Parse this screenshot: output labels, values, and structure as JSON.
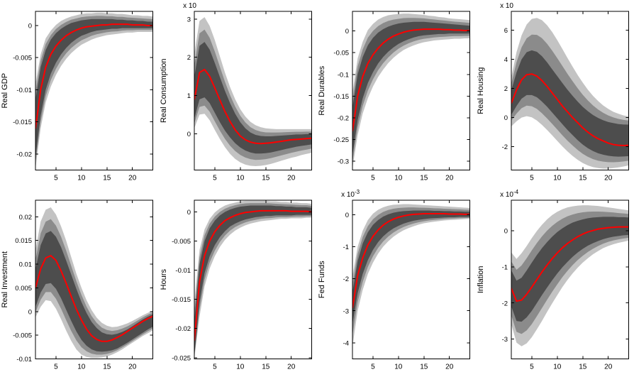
{
  "figure": {
    "background": "#ffffff",
    "colors": {
      "median_line": "#ff0000",
      "band_outer": "#c3c3c3",
      "band_mid": "#8b8b8b",
      "band_inner": "#4d4d4d",
      "axis": "#000000"
    },
    "x_range": [
      1,
      24
    ],
    "x_ticks": [
      5,
      10,
      15,
      20
    ],
    "x_tick_labels": [
      "5",
      "10",
      "15",
      "20"
    ]
  },
  "chart_data": [
    {
      "type": "line",
      "id": "real-gdp",
      "ylabel": "Real GDP",
      "exponent": null,
      "ylim": [
        -0.0225,
        0.0022
      ],
      "ytick_values": [
        0,
        -0.005,
        -0.01,
        -0.015,
        -0.02
      ],
      "ytick_labels": [
        "0",
        "-0.005",
        "-0.01",
        "-0.015",
        "-0.02"
      ],
      "median": [
        -0.016,
        -0.01,
        -0.0065,
        -0.0045,
        -0.0032,
        -0.0023,
        -0.0016,
        -0.0011,
        -0.0007,
        -0.0004,
        -0.0002,
        -0.0001,
        0,
        0.0001,
        0.0001,
        0.0002,
        0.0002,
        0.0002,
        0.0002,
        0.0001,
        0.0001,
        0.0001,
        0,
        0
      ],
      "inner_lo": [
        -0.0205,
        -0.014,
        -0.01,
        -0.0075,
        -0.0058,
        -0.0045,
        -0.0035,
        -0.0027,
        -0.0021,
        -0.0016,
        -0.0013,
        -0.001,
        -0.0008,
        -0.0007,
        -0.0006,
        -0.0005,
        -0.0005,
        -0.0004,
        -0.0004,
        -0.0004,
        -0.0004,
        -0.0004,
        -0.0004,
        -0.0004
      ],
      "inner_hi": [
        -0.0115,
        -0.0065,
        -0.0038,
        -0.0022,
        -0.0012,
        -0.0005,
        0,
        0.0004,
        0.0006,
        0.0008,
        0.0009,
        0.001,
        0.001,
        0.001,
        0.001,
        0.001,
        0.0009,
        0.0009,
        0.0008,
        0.0008,
        0.0007,
        0.0007,
        0.0006,
        0.0006
      ],
      "outer_lo": [
        -0.0222,
        -0.016,
        -0.012,
        -0.0095,
        -0.0077,
        -0.0063,
        -0.0052,
        -0.0043,
        -0.0036,
        -0.003,
        -0.0026,
        -0.0022,
        -0.0019,
        -0.0017,
        -0.0015,
        -0.0014,
        -0.0013,
        -0.0012,
        -0.0011,
        -0.0011,
        -0.001,
        -0.001,
        -0.001,
        -0.001
      ],
      "outer_hi": [
        -0.009,
        -0.0045,
        -0.002,
        -0.0008,
        0.0001,
        0.0007,
        0.0011,
        0.0014,
        0.0016,
        0.0018,
        0.0019,
        0.0019,
        0.002,
        0.002,
        0.0019,
        0.0019,
        0.0018,
        0.0018,
        0.0017,
        0.0016,
        0.0016,
        0.0015,
        0.0015,
        0.0014
      ]
    },
    {
      "type": "line",
      "id": "real-consumption",
      "ylabel": "Real Consumption",
      "exponent": {
        "base": "x 10",
        "exp": ""
      },
      "ylim": [
        -0.95,
        3.2
      ],
      "ytick_values": [
        3,
        2,
        1,
        0
      ],
      "ytick_labels": [
        "3",
        "2",
        "1",
        "0"
      ],
      "median": [
        0.9,
        1.6,
        1.68,
        1.5,
        1.2,
        0.88,
        0.58,
        0.32,
        0.1,
        -0.06,
        -0.16,
        -0.22,
        -0.25,
        -0.26,
        -0.25,
        -0.24,
        -0.22,
        -0.2,
        -0.18,
        -0.16,
        -0.15,
        -0.14,
        -0.13,
        -0.12
      ],
      "inner_lo": [
        0.4,
        0.9,
        0.95,
        0.8,
        0.55,
        0.3,
        0.08,
        -0.1,
        -0.25,
        -0.36,
        -0.44,
        -0.49,
        -0.52,
        -0.52,
        -0.51,
        -0.49,
        -0.46,
        -0.43,
        -0.4,
        -0.37,
        -0.34,
        -0.32,
        -0.3,
        -0.28
      ],
      "inner_hi": [
        1.5,
        2.3,
        2.4,
        2.2,
        1.85,
        1.48,
        1.12,
        0.8,
        0.52,
        0.3,
        0.14,
        0.03,
        -0.03,
        -0.06,
        -0.07,
        -0.07,
        -0.06,
        -0.05,
        -0.04,
        -0.03,
        -0.02,
        -0.02,
        -0.01,
        -0.01
      ],
      "outer_lo": [
        0.15,
        0.5,
        0.52,
        0.35,
        0.1,
        -0.14,
        -0.35,
        -0.53,
        -0.66,
        -0.75,
        -0.81,
        -0.84,
        -0.85,
        -0.84,
        -0.82,
        -0.79,
        -0.75,
        -0.71,
        -0.67,
        -0.63,
        -0.6,
        -0.56,
        -0.53,
        -0.5
      ],
      "outer_hi": [
        2.1,
        2.95,
        3.05,
        2.82,
        2.45,
        2.02,
        1.6,
        1.22,
        0.9,
        0.64,
        0.45,
        0.31,
        0.22,
        0.17,
        0.14,
        0.13,
        0.12,
        0.12,
        0.12,
        0.12,
        0.12,
        0.12,
        0.12,
        0.12
      ]
    },
    {
      "type": "line",
      "id": "real-durables",
      "ylabel": "Real Durables",
      "exponent": null,
      "ylim": [
        -0.32,
        0.045
      ],
      "ytick_values": [
        0,
        -0.05,
        -0.1,
        -0.15,
        -0.2,
        -0.25,
        -0.3
      ],
      "ytick_labels": [
        "0",
        "-0.05",
        "-0.1",
        "-0.15",
        "-0.2",
        "-0.25",
        "-0.3"
      ],
      "median": [
        -0.23,
        -0.15,
        -0.105,
        -0.075,
        -0.055,
        -0.04,
        -0.028,
        -0.019,
        -0.012,
        -0.007,
        -0.003,
        0,
        0.002,
        0.003,
        0.004,
        0.004,
        0.004,
        0.004,
        0.003,
        0.003,
        0.002,
        0.002,
        0.001,
        0.001
      ],
      "inner_lo": [
        -0.285,
        -0.205,
        -0.155,
        -0.12,
        -0.095,
        -0.075,
        -0.06,
        -0.048,
        -0.038,
        -0.03,
        -0.024,
        -0.019,
        -0.015,
        -0.012,
        -0.01,
        -0.009,
        -0.008,
        -0.007,
        -0.007,
        -0.006,
        -0.006,
        -0.006,
        -0.006,
        -0.006
      ],
      "inner_hi": [
        -0.175,
        -0.1,
        -0.06,
        -0.033,
        -0.016,
        -0.004,
        0.004,
        0.01,
        0.014,
        0.017,
        0.019,
        0.02,
        0.021,
        0.021,
        0.021,
        0.02,
        0.019,
        0.018,
        0.017,
        0.016,
        0.015,
        0.014,
        0.013,
        0.012
      ],
      "outer_lo": [
        -0.315,
        -0.24,
        -0.19,
        -0.155,
        -0.128,
        -0.106,
        -0.089,
        -0.074,
        -0.062,
        -0.052,
        -0.044,
        -0.038,
        -0.033,
        -0.029,
        -0.026,
        -0.024,
        -0.022,
        -0.021,
        -0.02,
        -0.019,
        -0.018,
        -0.018,
        -0.017,
        -0.017
      ],
      "outer_hi": [
        -0.14,
        -0.063,
        -0.025,
        0.002,
        0.016,
        0.026,
        0.032,
        0.036,
        0.038,
        0.039,
        0.04,
        0.04,
        0.039,
        0.038,
        0.037,
        0.035,
        0.034,
        0.032,
        0.031,
        0.029,
        0.028,
        0.027,
        0.026,
        0.025
      ]
    },
    {
      "type": "line",
      "id": "real-housing",
      "ylabel": "Real Housing",
      "exponent": {
        "base": "x 10",
        "exp": ""
      },
      "ylim": [
        -3.6,
        7.3
      ],
      "ytick_values": [
        6,
        4,
        2,
        0,
        -2
      ],
      "ytick_labels": [
        "6",
        "4",
        "2",
        "0",
        "-2"
      ],
      "median": [
        1,
        1.9,
        2.6,
        2.95,
        3,
        2.85,
        2.55,
        2.15,
        1.7,
        1.25,
        0.8,
        0.4,
        0,
        -0.35,
        -0.7,
        -1,
        -1.25,
        -1.45,
        -1.6,
        -1.75,
        -1.85,
        -1.9,
        -1.92,
        -1.9
      ],
      "inner_lo": [
        0.2,
        0.8,
        1.3,
        1.55,
        1.55,
        1.4,
        1.1,
        0.75,
        0.35,
        -0.05,
        -0.45,
        -0.85,
        -1.2,
        -1.55,
        -1.85,
        -2.1,
        -2.3,
        -2.45,
        -2.55,
        -2.62,
        -2.66,
        -2.68,
        -2.67,
        -2.64
      ],
      "inner_hi": [
        1.9,
        3.1,
        4,
        4.5,
        4.62,
        4.52,
        4.22,
        3.8,
        3.32,
        2.85,
        2.38,
        1.92,
        1.5,
        1.1,
        0.74,
        0.44,
        0.18,
        -0.02,
        -0.18,
        -0.3,
        -0.38,
        -0.44,
        -0.47,
        -0.48
      ],
      "outer_lo": [
        -0.6,
        -0.25,
        0,
        0.1,
        0.02,
        -0.2,
        -0.5,
        -0.85,
        -1.22,
        -1.6,
        -1.97,
        -2.32,
        -2.63,
        -2.9,
        -3.12,
        -3.28,
        -3.4,
        -3.47,
        -3.5,
        -3.5,
        -3.47,
        -3.42,
        -3.36,
        -3.28
      ],
      "outer_hi": [
        2.8,
        4.5,
        5.65,
        6.4,
        6.78,
        6.85,
        6.7,
        6.35,
        5.88,
        5.32,
        4.72,
        4.1,
        3.5,
        2.92,
        2.4,
        1.92,
        1.5,
        1.14,
        0.84,
        0.6,
        0.4,
        0.26,
        0.15,
        0.08
      ]
    },
    {
      "type": "line",
      "id": "real-investment",
      "ylabel": "Real Investment",
      "exponent": null,
      "ylim": [
        -0.01,
        0.0235
      ],
      "ytick_values": [
        0.02,
        0.015,
        0.01,
        0.005,
        0,
        -0.005,
        -0.01
      ],
      "ytick_labels": [
        "0.02",
        "0.015",
        "0.01",
        "0.005",
        "0",
        "-0.005",
        "-0.01"
      ],
      "median": [
        0.005,
        0.009,
        0.0113,
        0.0118,
        0.0108,
        0.0086,
        0.006,
        0.0032,
        0.0005,
        -0.0018,
        -0.0037,
        -0.0051,
        -0.0059,
        -0.0063,
        -0.0063,
        -0.006,
        -0.0055,
        -0.0049,
        -0.0042,
        -0.0035,
        -0.0028,
        -0.0021,
        -0.0015,
        -0.001
      ],
      "inner_lo": [
        0.001,
        0.004,
        0.0058,
        0.006,
        0.0048,
        0.0028,
        0.0004,
        -0.002,
        -0.0042,
        -0.006,
        -0.0072,
        -0.008,
        -0.0084,
        -0.0085,
        -0.0084,
        -0.0082,
        -0.0078,
        -0.0072,
        -0.0066,
        -0.0059,
        -0.0052,
        -0.0045,
        -0.0038,
        -0.0032
      ],
      "inner_hi": [
        0.009,
        0.014,
        0.0165,
        0.017,
        0.0158,
        0.0136,
        0.0108,
        0.0078,
        0.0048,
        0.002,
        -0.0003,
        -0.0022,
        -0.0035,
        -0.0044,
        -0.0048,
        -0.0049,
        -0.0047,
        -0.0043,
        -0.0038,
        -0.0031,
        -0.0024,
        -0.0017,
        -0.0011,
        -0.0006
      ],
      "outer_lo": [
        -0.0012,
        0.001,
        0.0024,
        0.0022,
        0.0006,
        -0.0016,
        -0.004,
        -0.0062,
        -0.008,
        -0.0091,
        -0.0096,
        -0.0098,
        -0.0098,
        -0.0097,
        -0.0095,
        -0.0091,
        -0.0086,
        -0.008,
        -0.0073,
        -0.0066,
        -0.0059,
        -0.0052,
        -0.0046,
        -0.004
      ],
      "outer_hi": [
        0.013,
        0.019,
        0.0215,
        0.022,
        0.0205,
        0.018,
        0.015,
        0.0115,
        0.008,
        0.005,
        0.0024,
        0.0003,
        -0.0013,
        -0.0024,
        -0.003,
        -0.0033,
        -0.0032,
        -0.0029,
        -0.0025,
        -0.002,
        -0.0014,
        -0.0008,
        -0.0003,
        0.0002
      ]
    },
    {
      "type": "line",
      "id": "hours",
      "ylabel": "Hours",
      "exponent": null,
      "ylim": [
        -0.0252,
        0.002
      ],
      "ytick_values": [
        0,
        -0.005,
        -0.01,
        -0.015,
        -0.02,
        -0.025
      ],
      "ytick_labels": [
        "0",
        "-0.005",
        "-0.01",
        "-0.015",
        "-0.02",
        "-0.025"
      ],
      "median": [
        -0.022,
        -0.012,
        -0.0075,
        -0.005,
        -0.0034,
        -0.0023,
        -0.0015,
        -0.001,
        -0.0006,
        -0.0003,
        -0.0001,
        0,
        0.0001,
        0.0002,
        0.0002,
        0.0002,
        0.0002,
        0.0002,
        0.0002,
        0.0001,
        0.0001,
        0.0001,
        0.0001,
        0
      ],
      "inner_lo": [
        -0.0245,
        -0.0155,
        -0.0105,
        -0.0076,
        -0.0057,
        -0.0043,
        -0.0033,
        -0.0025,
        -0.002,
        -0.0016,
        -0.0013,
        -0.0011,
        -0.0009,
        -0.0008,
        -0.0007,
        -0.0007,
        -0.0006,
        -0.0006,
        -0.0006,
        -0.0006,
        -0.0005,
        -0.0005,
        -0.0005,
        -0.0005
      ],
      "inner_hi": [
        -0.0185,
        -0.009,
        -0.005,
        -0.0028,
        -0.0015,
        -0.0006,
        0,
        0.0004,
        0.0007,
        0.0009,
        0.001,
        0.0011,
        0.0011,
        0.0011,
        0.0011,
        0.0011,
        0.001,
        0.001,
        0.0009,
        0.0009,
        0.0008,
        0.0008,
        0.0008,
        0.0007
      ],
      "outer_lo": [
        -0.025,
        -0.018,
        -0.0128,
        -0.0097,
        -0.0076,
        -0.006,
        -0.0048,
        -0.0039,
        -0.0032,
        -0.0027,
        -0.0023,
        -0.002,
        -0.0018,
        -0.0016,
        -0.0015,
        -0.0014,
        -0.0013,
        -0.0012,
        -0.0012,
        -0.0011,
        -0.0011,
        -0.0011,
        -0.001,
        -0.001
      ],
      "outer_hi": [
        -0.0155,
        -0.0065,
        -0.003,
        -0.0012,
        -0.0001,
        0.0006,
        0.0011,
        0.0014,
        0.0016,
        0.0018,
        0.0019,
        0.0019,
        0.0019,
        0.0019,
        0.0019,
        0.0018,
        0.0018,
        0.0017,
        0.0017,
        0.0016,
        0.0016,
        0.0015,
        0.0015,
        0.0014
      ]
    },
    {
      "type": "line",
      "id": "fed-funds",
      "ylabel": "Fed Funds",
      "exponent": {
        "base": "x 10",
        "exp": "-3"
      },
      "ylim": [
        -4.5,
        0.45
      ],
      "ytick_values": [
        0,
        -1,
        -2,
        -3,
        -4
      ],
      "ytick_labels": [
        "0",
        "-1",
        "-2",
        "-3",
        "-4"
      ],
      "median": [
        -2.9,
        -1.9,
        -1.35,
        -0.95,
        -0.68,
        -0.48,
        -0.33,
        -0.22,
        -0.14,
        -0.08,
        -0.04,
        -0.01,
        0.01,
        0.02,
        0.03,
        0.03,
        0.03,
        0.03,
        0.03,
        0.02,
        0.02,
        0.02,
        0.01,
        0.01
      ],
      "inner_lo": [
        -3.4,
        -2.45,
        -1.85,
        -1.42,
        -1.1,
        -0.86,
        -0.68,
        -0.54,
        -0.43,
        -0.35,
        -0.28,
        -0.23,
        -0.19,
        -0.16,
        -0.14,
        -0.12,
        -0.11,
        -0.1,
        -0.09,
        -0.08,
        -0.08,
        -0.07,
        -0.07,
        -0.07
      ],
      "inner_hi": [
        -2.4,
        -1.45,
        -0.9,
        -0.55,
        -0.32,
        -0.17,
        -0.06,
        0.01,
        0.06,
        0.09,
        0.11,
        0.12,
        0.13,
        0.13,
        0.13,
        0.13,
        0.12,
        0.12,
        0.11,
        0.11,
        0.1,
        0.1,
        0.09,
        0.09
      ],
      "outer_lo": [
        -4.1,
        -3,
        -2.35,
        -1.85,
        -1.5,
        -1.22,
        -1,
        -0.83,
        -0.69,
        -0.58,
        -0.49,
        -0.42,
        -0.36,
        -0.31,
        -0.27,
        -0.24,
        -0.22,
        -0.2,
        -0.18,
        -0.17,
        -0.16,
        -0.15,
        -0.14,
        -0.13
      ],
      "outer_hi": [
        -1.9,
        -1,
        -0.5,
        -0.17,
        0.03,
        0.15,
        0.23,
        0.28,
        0.31,
        0.32,
        0.33,
        0.33,
        0.32,
        0.31,
        0.3,
        0.29,
        0.28,
        0.27,
        0.26,
        0.25,
        0.24,
        0.23,
        0.22,
        0.21
      ]
    },
    {
      "type": "line",
      "id": "inflation",
      "ylabel": "Inflation",
      "exponent": {
        "base": "x 10",
        "exp": "-4"
      },
      "ylim": [
        -3.55,
        0.85
      ],
      "ytick_values": [
        0,
        -1,
        -2,
        -3
      ],
      "ytick_labels": [
        "0",
        "-1",
        "-2",
        "-3"
      ],
      "median": [
        -1.6,
        -1.95,
        -1.92,
        -1.76,
        -1.56,
        -1.35,
        -1.14,
        -0.95,
        -0.77,
        -0.61,
        -0.47,
        -0.35,
        -0.25,
        -0.16,
        -0.09,
        -0.03,
        0.01,
        0.05,
        0.07,
        0.09,
        0.1,
        0.11,
        0.11,
        0.11
      ],
      "inner_lo": [
        -2.1,
        -2.5,
        -2.52,
        -2.4,
        -2.22,
        -2,
        -1.78,
        -1.57,
        -1.37,
        -1.18,
        -1.01,
        -0.86,
        -0.72,
        -0.6,
        -0.5,
        -0.41,
        -0.34,
        -0.28,
        -0.23,
        -0.19,
        -0.16,
        -0.14,
        -0.12,
        -0.11
      ],
      "inner_hi": [
        -1.1,
        -1.38,
        -1.3,
        -1.1,
        -0.88,
        -0.67,
        -0.48,
        -0.31,
        -0.16,
        -0.03,
        0.07,
        0.16,
        0.23,
        0.28,
        0.32,
        0.35,
        0.37,
        0.38,
        0.39,
        0.39,
        0.39,
        0.38,
        0.38,
        0.37
      ],
      "outer_lo": [
        -2.6,
        -3.1,
        -3.2,
        -3.12,
        -2.95,
        -2.73,
        -2.5,
        -2.25,
        -2.01,
        -1.78,
        -1.56,
        -1.36,
        -1.18,
        -1.02,
        -0.88,
        -0.76,
        -0.65,
        -0.56,
        -0.48,
        -0.42,
        -0.37,
        -0.33,
        -0.3,
        -0.27
      ],
      "outer_hi": [
        -0.6,
        -0.78,
        -0.62,
        -0.42,
        -0.2,
        0,
        0.17,
        0.32,
        0.44,
        0.53,
        0.6,
        0.65,
        0.68,
        0.7,
        0.71,
        0.71,
        0.7,
        0.69,
        0.67,
        0.65,
        0.63,
        0.61,
        0.59,
        0.57
      ]
    }
  ]
}
